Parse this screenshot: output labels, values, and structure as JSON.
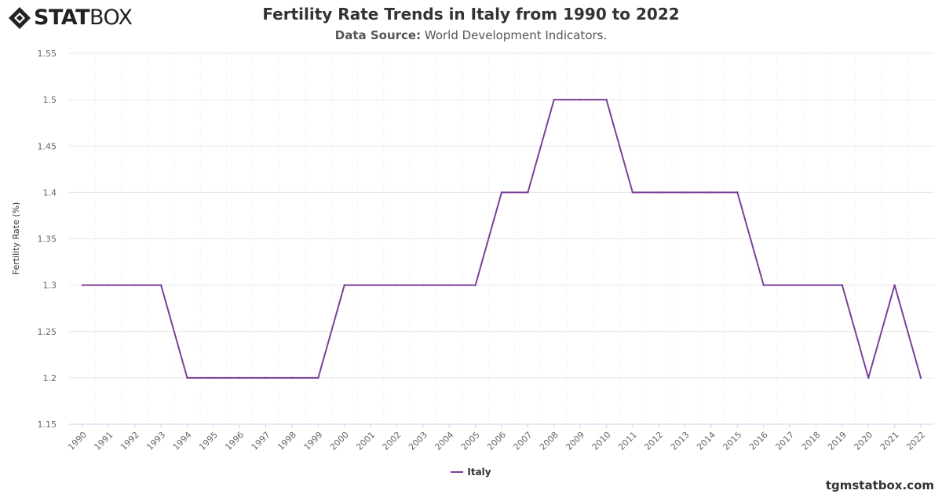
{
  "brand": {
    "logo_bold": "STAT",
    "logo_light": "BOX",
    "watermark": "tgmstatbox.com"
  },
  "header": {
    "title": "Fertility Rate Trends in Italy from 1990 to 2022",
    "source_label": "Data Source:",
    "source_value": "World Development Indicators."
  },
  "colors": {
    "series": "#7b3f98",
    "grid": "#e6e6e6",
    "axis_text": "#666666"
  },
  "chart_data": {
    "type": "line",
    "title": "Fertility Rate Trends in Italy from 1990 to 2022",
    "xlabel": "",
    "ylabel": "Fertility Rate (%)",
    "ylim": [
      1.15,
      1.55
    ],
    "y_ticks": [
      "1.15",
      "1.2",
      "1.25",
      "1.3",
      "1.35",
      "1.4",
      "1.45",
      "1.5",
      "1.55"
    ],
    "y_tick_values": [
      1.15,
      1.2,
      1.25,
      1.3,
      1.35,
      1.4,
      1.45,
      1.5,
      1.55
    ],
    "x": [
      "1990",
      "1991",
      "1992",
      "1993",
      "1994",
      "1995",
      "1996",
      "1997",
      "1998",
      "1999",
      "2000",
      "2001",
      "2002",
      "2003",
      "2004",
      "2005",
      "2006",
      "2007",
      "2008",
      "2009",
      "2010",
      "2011",
      "2012",
      "2013",
      "2014",
      "2015",
      "2016",
      "2017",
      "2018",
      "2019",
      "2020",
      "2021",
      "2022"
    ],
    "series": [
      {
        "name": "Italy",
        "values": [
          1.3,
          1.3,
          1.3,
          1.3,
          1.2,
          1.2,
          1.2,
          1.2,
          1.2,
          1.2,
          1.3,
          1.3,
          1.3,
          1.3,
          1.3,
          1.3,
          1.4,
          1.4,
          1.5,
          1.5,
          1.5,
          1.4,
          1.4,
          1.4,
          1.4,
          1.4,
          1.3,
          1.3,
          1.3,
          1.3,
          1.2,
          1.3,
          1.2
        ]
      }
    ],
    "grid": true,
    "legend_position": "bottom-center"
  }
}
